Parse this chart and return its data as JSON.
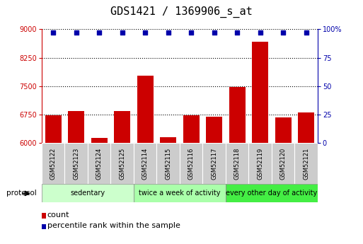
{
  "title": "GDS1421 / 1369906_s_at",
  "samples": [
    "GSM52122",
    "GSM52123",
    "GSM52124",
    "GSM52125",
    "GSM52114",
    "GSM52115",
    "GSM52116",
    "GSM52117",
    "GSM52118",
    "GSM52119",
    "GSM52120",
    "GSM52121"
  ],
  "counts": [
    6720,
    6830,
    6130,
    6830,
    7780,
    6150,
    6720,
    6680,
    7470,
    8680,
    6670,
    6810
  ],
  "percentile_values": [
    97,
    97,
    97,
    97,
    97,
    97,
    97,
    97,
    97,
    97,
    97,
    97
  ],
  "ylim_left": [
    6000,
    9000
  ],
  "ylim_right": [
    0,
    100
  ],
  "yticks_left": [
    6000,
    6750,
    7500,
    8250,
    9000
  ],
  "yticks_right": [
    0,
    25,
    50,
    75,
    100
  ],
  "bar_color": "#cc0000",
  "dot_color": "#0000aa",
  "groups": [
    {
      "label": "sedentary",
      "start": 0,
      "end": 4,
      "color": "#ccffcc"
    },
    {
      "label": "twice a week of activity",
      "start": 4,
      "end": 8,
      "color": "#aaffaa"
    },
    {
      "label": "every other day of activity",
      "start": 8,
      "end": 12,
      "color": "#44ee44"
    }
  ],
  "protocol_label": "protocol",
  "legend_items": [
    {
      "label": "count",
      "color": "#cc0000"
    },
    {
      "label": "percentile rank within the sample",
      "color": "#0000aa"
    }
  ],
  "title_fontsize": 11,
  "tick_fontsize": 7,
  "sample_fontsize": 6,
  "group_fontsize": 7,
  "legend_fontsize": 8,
  "background_color": "#ffffff",
  "left_axis_color": "#cc0000",
  "right_axis_color": "#0000aa",
  "sample_box_color": "#cccccc"
}
